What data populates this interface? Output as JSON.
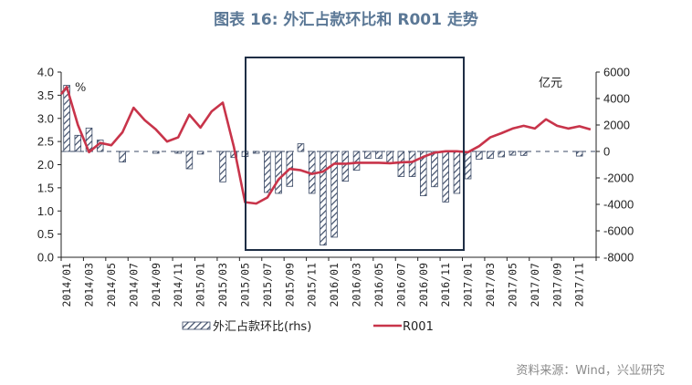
{
  "chart_data": {
    "type": "bar+line",
    "title": "图表 16: 外汇占款环比和 R001 走势",
    "left_unit": "%",
    "right_unit": "亿元",
    "left_ylim": [
      0,
      4.0
    ],
    "left_ticks": [
      "0.0",
      "0.5",
      "1.0",
      "1.5",
      "2.0",
      "2.5",
      "3.0",
      "3.5",
      "4.0"
    ],
    "right_ylim": [
      -8000,
      6000
    ],
    "right_ticks": [
      "-8000",
      "-6000",
      "-4000",
      "-2000",
      "0",
      "2000",
      "4000",
      "6000"
    ],
    "x": [
      "2014/01",
      "2014/02",
      "2014/03",
      "2014/04",
      "2014/05",
      "2014/06",
      "2014/07",
      "2014/08",
      "2014/09",
      "2014/10",
      "2014/11",
      "2014/12",
      "2015/01",
      "2015/02",
      "2015/03",
      "2015/04",
      "2015/05",
      "2015/06",
      "2015/07",
      "2015/08",
      "2015/09",
      "2015/10",
      "2015/11",
      "2015/12",
      "2016/01",
      "2016/02",
      "2016/03",
      "2016/04",
      "2016/05",
      "2016/06",
      "2016/07",
      "2016/08",
      "2016/09",
      "2016/10",
      "2016/11",
      "2016/12",
      "2017/01",
      "2017/02",
      "2017/03",
      "2017/04",
      "2017/05",
      "2017/06",
      "2017/07",
      "2017/08",
      "2017/09",
      "2017/10",
      "2017/11",
      "2017/12"
    ],
    "x_tick_labels": [
      "2014/01",
      "2014/03",
      "2014/05",
      "2014/07",
      "2014/09",
      "2014/11",
      "2015/01",
      "2015/03",
      "2015/05",
      "2015/07",
      "2015/09",
      "2015/11",
      "2016/01",
      "2016/03",
      "2016/05",
      "2016/07",
      "2016/09",
      "2016/11",
      "2017/01",
      "2017/03",
      "2017/05",
      "2017/07",
      "2017/09",
      "2017/11"
    ],
    "series": [
      {
        "name": "外汇占款环比(rhs)",
        "type": "bar",
        "axis": "right",
        "pattern": "hatched",
        "color": "#3b4a66",
        "values": [
          5000,
          1220,
          1770,
          860,
          0,
          -800,
          0,
          0,
          -100,
          0,
          -50,
          -1310,
          -200,
          0,
          -2300,
          -460,
          -390,
          -100,
          -3100,
          -3170,
          -2640,
          580,
          -3170,
          -7080,
          -6480,
          -2250,
          -1420,
          -510,
          -530,
          -850,
          -1900,
          -1900,
          -3350,
          -2670,
          -3820,
          -3170,
          -2070,
          -580,
          -530,
          -410,
          -280,
          -300,
          0,
          0,
          0,
          0,
          -350,
          0
        ]
      },
      {
        "name": "R001",
        "type": "line",
        "axis": "left",
        "color": "#c8344a",
        "values": [
          3.68,
          2.86,
          2.27,
          2.47,
          2.42,
          2.7,
          3.23,
          2.96,
          2.76,
          2.5,
          2.59,
          3.08,
          2.8,
          3.15,
          3.34,
          2.38,
          1.19,
          1.16,
          1.29,
          1.68,
          1.91,
          1.88,
          1.8,
          1.85,
          2.02,
          2.02,
          2.04,
          2.04,
          2.04,
          2.03,
          2.05,
          2.06,
          2.17,
          2.26,
          2.29,
          2.29,
          2.27,
          2.4,
          2.59,
          2.68,
          2.78,
          2.84,
          2.78,
          2.98,
          2.84,
          2.78,
          2.83,
          2.76
        ]
      }
    ],
    "highlight_range": [
      "2015/06",
      "2016/12"
    ],
    "grid": false,
    "legend_position": "bottom",
    "source": "资料来源：Wind，兴业研究"
  }
}
